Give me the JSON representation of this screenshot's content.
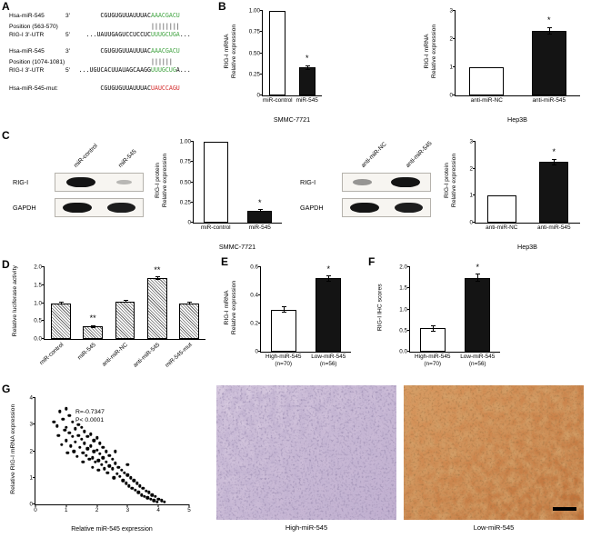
{
  "panel_letters": [
    "A",
    "B",
    "C",
    "D",
    "E",
    "F",
    "G"
  ],
  "panelA": {
    "rows": [
      {
        "label": "Hsa-miR-545",
        "prime": "3'",
        "prefix": "CGUGUGUUAUUUAC",
        "pair": "AAACGACU",
        "pair_color": "#3fa33f",
        "suffix": ""
      },
      {
        "label": "Position (563-570)",
        "prime": "",
        "prefix": "",
        "pair": "||||||||",
        "pair_color": "#222222",
        "suffix": ""
      },
      {
        "label": "RIG-I 3'-UTR",
        "prime": "5'",
        "prefix": "...UAUUGAGUCCUCCUC",
        "pair": "UUUGCUGA",
        "pair_color": "#3fa33f",
        "suffix": "..."
      },
      {
        "label": "Hsa-miR-545",
        "prime": "3'",
        "prefix": "CGUGUGUUAUUUAC",
        "pair": "AAACGACU",
        "pair_color": "#3fa33f",
        "suffix": ""
      },
      {
        "label": "Position (1074-1081)",
        "prime": "",
        "prefix": "",
        "pair": "||||||",
        "pair_color": "#222222",
        "suffix": ""
      },
      {
        "label": "RIG-I 3'-UTR",
        "prime": "5'",
        "prefix": "...UGUCACUUAUAGCAAGG",
        "pair": "UUUGCUG",
        "pair_color": "#3fa33f",
        "suffix": "A..."
      },
      {
        "label": "Hsa-miR-545-mut:",
        "prime": "",
        "prefix": "CGUGUGUUAUUUAC",
        "pair": "UAUCCAGU",
        "pair_color": "#d42a2a",
        "suffix": ""
      }
    ]
  },
  "chart_data": [
    {
      "type": "bar",
      "panel": "B",
      "ylabel": "RIG-I mRNA\nRelative expression",
      "categories": [
        "miR-control",
        "miR-545"
      ],
      "values": [
        1.0,
        0.33
      ],
      "errors": [
        0,
        0.03
      ],
      "sig": [
        "",
        "*"
      ],
      "fills": [
        "#ffffff",
        "#141414"
      ],
      "ylim": [
        0,
        1.0
      ],
      "yticks": [
        0,
        0.25,
        0.5,
        0.75,
        1.0
      ],
      "ytick_labels": [
        "0",
        "0.25",
        "0.50",
        "0.75",
        "1.00"
      ],
      "group_label": "SMMC-7721"
    },
    {
      "type": "bar",
      "panel": "B",
      "ylabel": "RIG-I mRNA\nRelative expression",
      "categories": [
        "anti-miR-NC",
        "anti-miR-545"
      ],
      "values": [
        1.0,
        2.3
      ],
      "errors": [
        0,
        0.13
      ],
      "sig": [
        "",
        "*"
      ],
      "fills": [
        "#ffffff",
        "#141414"
      ],
      "ylim": [
        0,
        3
      ],
      "yticks": [
        0,
        1,
        2,
        3
      ],
      "ytick_labels": [
        "0",
        "1",
        "2",
        "3"
      ],
      "group_label": "Hep3B"
    },
    {
      "type": "bar",
      "panel": "C",
      "ylabel": "RIG-I protein\nRelative expression",
      "categories": [
        "miR-control",
        "miR-545"
      ],
      "values": [
        1.0,
        0.15
      ],
      "errors": [
        0,
        0.02
      ],
      "sig": [
        "",
        "*"
      ],
      "fills": [
        "#ffffff",
        "#141414"
      ],
      "ylim": [
        0,
        1.0
      ],
      "yticks": [
        0,
        0.25,
        0.5,
        0.75,
        1.0
      ],
      "ytick_labels": [
        "0",
        "0.25",
        "0.50",
        "0.75",
        "1.00"
      ],
      "group_label": "SMMC-7721"
    },
    {
      "type": "bar",
      "panel": "C",
      "ylabel": "RIG-I protein\nRelative expression",
      "categories": [
        "anti-miR-NC",
        "anti-miR-545"
      ],
      "values": [
        1.0,
        2.25
      ],
      "errors": [
        0,
        0.12
      ],
      "sig": [
        "",
        "*"
      ],
      "fills": [
        "#ffffff",
        "#141414"
      ],
      "ylim": [
        0,
        3
      ],
      "yticks": [
        0,
        1,
        2,
        3
      ],
      "ytick_labels": [
        "0",
        "1",
        "2",
        "3"
      ],
      "group_label": "Hep3B"
    },
    {
      "type": "bar",
      "panel": "D",
      "ylabel": "Relative luciferase activity",
      "categories": [
        "miR-control",
        "miR-545",
        "anti-miR-NC",
        "anti-miR-545",
        "miR-545-mut"
      ],
      "values": [
        1.0,
        0.35,
        1.05,
        1.7,
        1.0
      ],
      "errors": [
        0.03,
        0.04,
        0.03,
        0.05,
        0.03
      ],
      "sig": [
        "",
        "**",
        "",
        "**",
        ""
      ],
      "hatch": true,
      "rotate_x": true,
      "ylim": [
        0,
        2
      ],
      "yticks": [
        0,
        0.5,
        1,
        1.5,
        2
      ],
      "ytick_labels": [
        "0.0",
        "0.5",
        "1.0",
        "1.5",
        "2.0"
      ]
    },
    {
      "type": "bar",
      "panel": "E",
      "ylabel": "RIG-I mRNA\nRelative expression",
      "categories": [
        "High-miR-545\n(n=70)",
        "Low-miR-545\n(n=56)"
      ],
      "values": [
        0.3,
        0.52
      ],
      "errors": [
        0.02,
        0.02
      ],
      "sig": [
        "",
        "*"
      ],
      "fills": [
        "#ffffff",
        "#141414"
      ],
      "ylim": [
        0,
        0.6
      ],
      "yticks": [
        0,
        0.2,
        0.4,
        0.6
      ],
      "ytick_labels": [
        "0",
        "0.2",
        "0.4",
        "0.6"
      ]
    },
    {
      "type": "bar",
      "panel": "F",
      "ylabel": "RIG-I IHC scores",
      "categories": [
        "High-miR-545\n(n=70)",
        "Low-miR-545\n(n=56)"
      ],
      "values": [
        0.55,
        1.75
      ],
      "errors": [
        0.07,
        0.09
      ],
      "sig": [
        "",
        "*"
      ],
      "fills": [
        "#ffffff",
        "#141414"
      ],
      "ylim": [
        0,
        2
      ],
      "yticks": [
        0,
        0.5,
        1,
        1.5,
        2
      ],
      "ytick_labels": [
        "0.0",
        "0.5",
        "1.0",
        "1.5",
        "2.0"
      ]
    },
    {
      "type": "scatter",
      "panel": "G",
      "xlabel": "Relative miR-545 expression",
      "ylabel": "Relative RIG-I mRNA expression",
      "xlim": [
        0,
        5
      ],
      "ylim": [
        0,
        4
      ],
      "xticks": [
        0,
        1,
        2,
        3,
        4,
        5
      ],
      "xtick_labels": [
        "0",
        "1",
        "2",
        "3",
        "4",
        "5"
      ],
      "yticks": [
        0,
        1,
        2,
        3,
        4
      ],
      "ytick_labels": [
        "0",
        "1",
        "2",
        "3",
        "4"
      ],
      "annotation": [
        "R=-0.7347",
        "P< 0.0001"
      ],
      "points": [
        [
          0.6,
          3.1
        ],
        [
          0.7,
          2.95
        ],
        [
          0.75,
          2.6
        ],
        [
          0.8,
          3.5
        ],
        [
          0.85,
          2.25
        ],
        [
          0.9,
          3.2
        ],
        [
          0.95,
          2.8
        ],
        [
          1.0,
          3.6
        ],
        [
          1.0,
          2.9
        ],
        [
          1.0,
          2.4
        ],
        [
          1.05,
          1.95
        ],
        [
          1.1,
          3.35
        ],
        [
          1.1,
          2.7
        ],
        [
          1.15,
          2.2
        ],
        [
          1.2,
          3.1
        ],
        [
          1.2,
          2.55
        ],
        [
          1.25,
          2.0
        ],
        [
          1.3,
          2.85
        ],
        [
          1.3,
          2.35
        ],
        [
          1.35,
          1.8
        ],
        [
          1.4,
          3.0
        ],
        [
          1.4,
          2.6
        ],
        [
          1.45,
          2.15
        ],
        [
          1.5,
          2.9
        ],
        [
          1.5,
          2.45
        ],
        [
          1.55,
          1.95
        ],
        [
          1.55,
          1.6
        ],
        [
          1.6,
          2.75
        ],
        [
          1.6,
          2.3
        ],
        [
          1.65,
          1.85
        ],
        [
          1.7,
          2.55
        ],
        [
          1.7,
          2.1
        ],
        [
          1.75,
          1.7
        ],
        [
          1.8,
          2.65
        ],
        [
          1.8,
          2.2
        ],
        [
          1.85,
          1.75
        ],
        [
          1.85,
          1.4
        ],
        [
          1.9,
          2.4
        ],
        [
          1.9,
          2.0
        ],
        [
          1.95,
          1.6
        ],
        [
          2.0,
          2.5
        ],
        [
          2.0,
          2.05
        ],
        [
          2.05,
          1.65
        ],
        [
          2.05,
          1.3
        ],
        [
          2.1,
          2.3
        ],
        [
          2.1,
          1.9
        ],
        [
          2.15,
          1.5
        ],
        [
          2.2,
          2.15
        ],
        [
          2.2,
          1.75
        ],
        [
          2.25,
          1.35
        ],
        [
          2.3,
          2.0
        ],
        [
          2.3,
          1.6
        ],
        [
          2.35,
          1.2
        ],
        [
          2.4,
          1.85
        ],
        [
          2.4,
          1.45
        ],
        [
          2.5,
          1.7
        ],
        [
          2.5,
          1.35
        ],
        [
          2.55,
          1.0
        ],
        [
          2.6,
          2.0
        ],
        [
          2.6,
          1.55
        ],
        [
          2.65,
          1.15
        ],
        [
          2.7,
          1.4
        ],
        [
          2.75,
          1.05
        ],
        [
          2.8,
          1.3
        ],
        [
          2.85,
          0.9
        ],
        [
          2.9,
          1.2
        ],
        [
          2.95,
          0.8
        ],
        [
          3.0,
          1.5
        ],
        [
          3.0,
          1.1
        ],
        [
          3.05,
          0.7
        ],
        [
          3.1,
          1.0
        ],
        [
          3.15,
          0.6
        ],
        [
          3.2,
          0.9
        ],
        [
          3.25,
          0.55
        ],
        [
          3.3,
          0.8
        ],
        [
          3.35,
          0.45
        ],
        [
          3.4,
          0.7
        ],
        [
          3.45,
          0.35
        ],
        [
          3.5,
          0.6
        ],
        [
          3.55,
          0.3
        ],
        [
          3.6,
          0.5
        ],
        [
          3.65,
          0.25
        ],
        [
          3.7,
          0.45
        ],
        [
          3.75,
          0.2
        ],
        [
          3.8,
          0.35
        ],
        [
          3.85,
          0.15
        ],
        [
          3.9,
          0.3
        ],
        [
          3.95,
          0.1
        ],
        [
          4.0,
          0.2
        ],
        [
          4.1,
          0.15
        ],
        [
          4.2,
          0.1
        ]
      ]
    }
  ],
  "blots": [
    {
      "cols": [
        "miR-control",
        "miR-545"
      ],
      "rows": [
        {
          "label": "RIG-I",
          "bands": [
            1.0,
            0.12
          ]
        },
        {
          "label": "GAPDH",
          "bands": [
            1.0,
            0.95
          ]
        }
      ]
    },
    {
      "cols": [
        "anti-miR-NC",
        "anti-miR-545"
      ],
      "rows": [
        {
          "label": "RIG-I",
          "bands": [
            0.3,
            1.0
          ]
        },
        {
          "label": "GAPDH",
          "bands": [
            1.0,
            0.95
          ]
        }
      ]
    }
  ],
  "ihc": {
    "high_label": "High-miR-545",
    "low_label": "Low-miR-545",
    "high_tint": "#c9b9d4",
    "low_tint": "#cd8450"
  }
}
